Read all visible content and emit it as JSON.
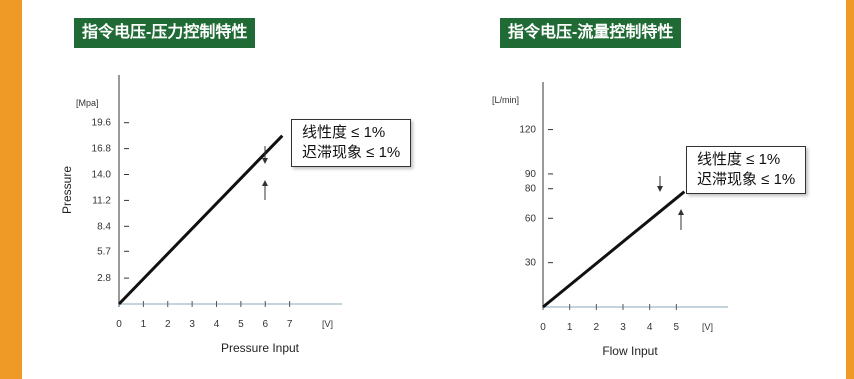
{
  "chart_data": [
    {
      "type": "line",
      "title": "指令电压-压力控制特性",
      "xlabel": "Pressure Input",
      "ylabel": "Pressure",
      "y_unit": "[Mpa]",
      "x_unit": "[V]",
      "x_ticks": [
        "0",
        "1",
        "2",
        "3",
        "4",
        "5",
        "6",
        "7"
      ],
      "y_ticks": [
        "2.8",
        "5.7",
        "8.4",
        "11.2",
        "14.0",
        "16.8",
        "19.6"
      ],
      "xlim": [
        0,
        8
      ],
      "ylim": [
        0,
        24
      ],
      "x": [
        0,
        6.7
      ],
      "y": [
        0,
        18.2
      ],
      "annotation": [
        "线性度 ≤ 1%",
        "迟滞现象 ≤ 1%"
      ]
    },
    {
      "type": "line",
      "title": "指令电压-流量控制特性",
      "xlabel": "Flow Input",
      "ylabel": "",
      "y_unit": "[L/min]",
      "x_unit": "[V]",
      "x_ticks": [
        "0",
        "1",
        "2",
        "3",
        "4",
        "5"
      ],
      "y_ticks": [
        "30",
        "60",
        "80",
        "90",
        "120"
      ],
      "xlim": [
        0,
        6
      ],
      "ylim": [
        0,
        140
      ],
      "x": [
        0,
        5.3
      ],
      "y": [
        0,
        78
      ],
      "annotation": [
        "线性度 ≤ 1%",
        "迟滞现象 ≤ 1%"
      ]
    }
  ]
}
